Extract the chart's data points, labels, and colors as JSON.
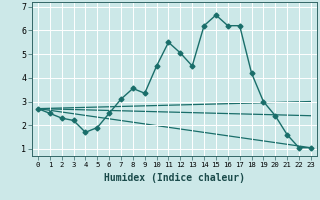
{
  "xlabel": "Humidex (Indice chaleur)",
  "background_color": "#cce8e8",
  "grid_color": "#ffffff",
  "line_color": "#1a6e6a",
  "xlim": [
    -0.5,
    23.5
  ],
  "ylim": [
    0.7,
    7.2
  ],
  "xticks": [
    0,
    1,
    2,
    3,
    4,
    5,
    6,
    7,
    8,
    9,
    10,
    11,
    12,
    13,
    14,
    15,
    16,
    17,
    18,
    19,
    20,
    21,
    22,
    23
  ],
  "yticks": [
    1,
    2,
    3,
    4,
    5,
    6,
    7
  ],
  "series_main": {
    "x": [
      0,
      1,
      2,
      3,
      4,
      5,
      6,
      7,
      8,
      9,
      10,
      11,
      12,
      13,
      14,
      15,
      16,
      17,
      18,
      19,
      20,
      21,
      22,
      23
    ],
    "y": [
      2.7,
      2.5,
      2.3,
      2.2,
      1.7,
      1.9,
      2.5,
      3.1,
      3.55,
      3.35,
      4.5,
      5.5,
      5.05,
      4.5,
      6.2,
      6.65,
      6.2,
      6.2,
      4.2,
      3.0,
      2.4,
      1.6,
      1.05,
      1.05
    ]
  },
  "series_lines": [
    {
      "x": [
        0,
        23
      ],
      "y": [
        2.7,
        1.05
      ]
    },
    {
      "x": [
        0,
        23
      ],
      "y": [
        2.7,
        2.4
      ]
    },
    {
      "x": [
        0,
        23
      ],
      "y": [
        2.7,
        3.0
      ]
    }
  ]
}
